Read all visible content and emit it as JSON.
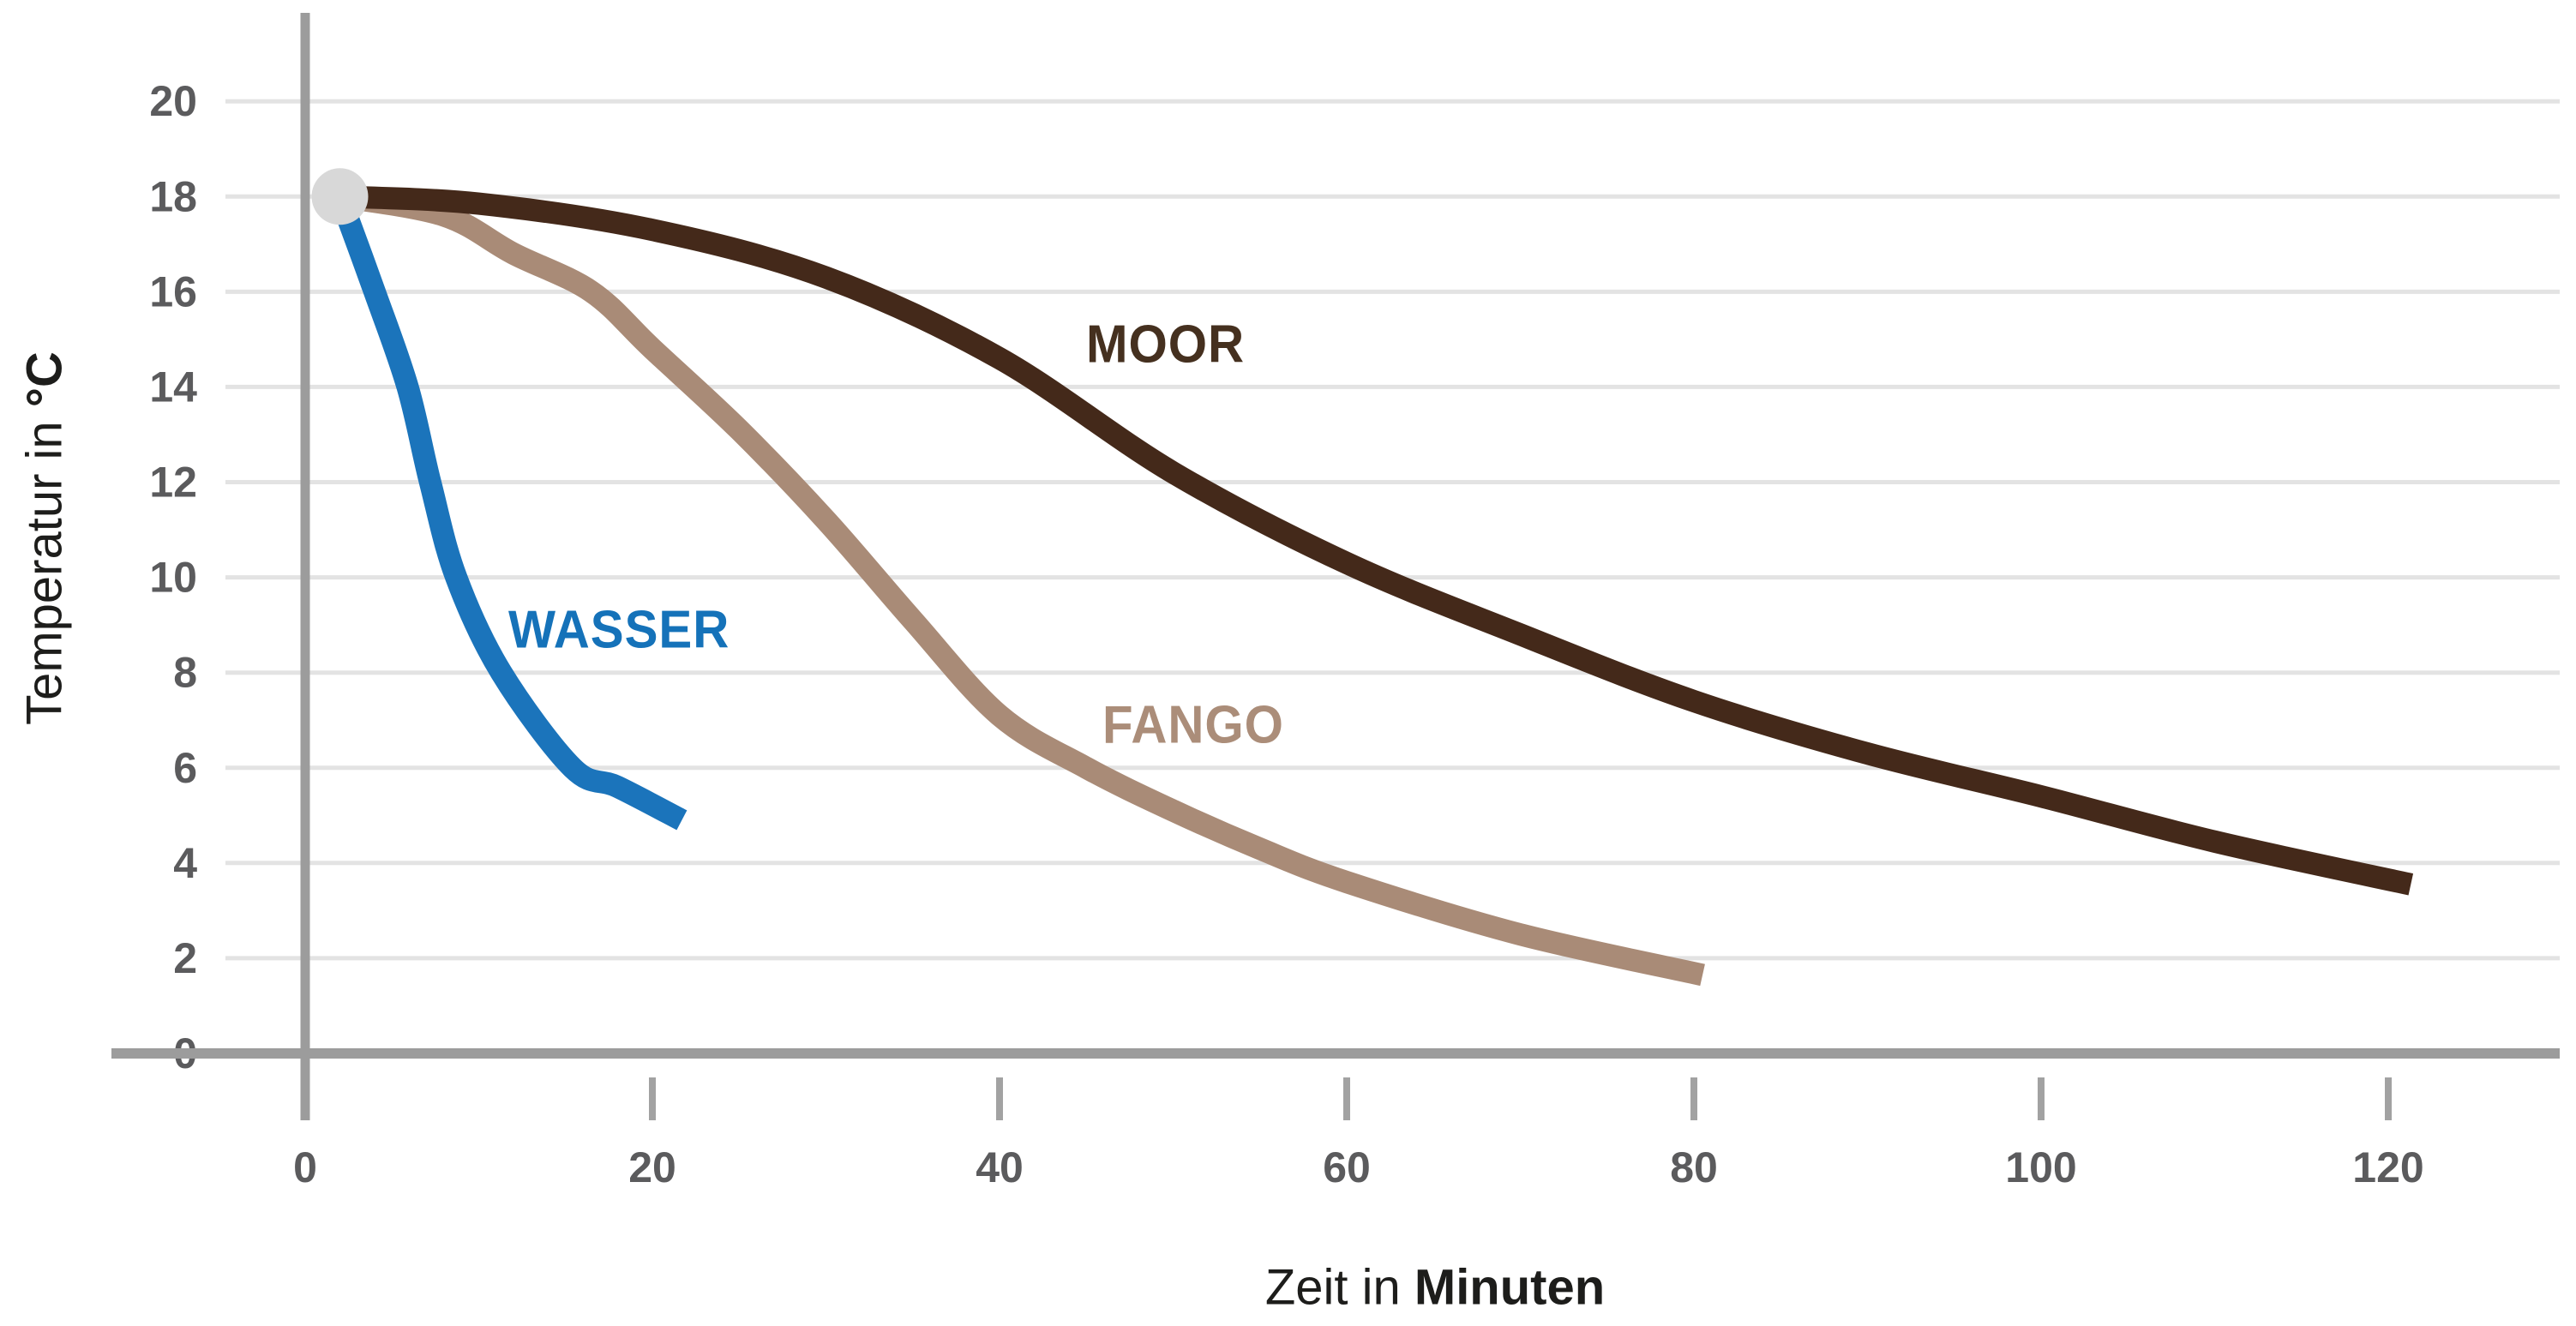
{
  "figure": {
    "background": "#ffffff",
    "x_axis": {
      "title_regular": "Zeit in ",
      "title_bold": "Minuten"
    },
    "y_axis": {
      "title_regular": "Temperatur in ",
      "title_bold": "°C"
    },
    "colors": {
      "grid": "#e3e3e3",
      "axis": "#9c9c9c",
      "tick": "#a2a2a2",
      "tick_label": "#5b5b5d",
      "title_text": "#1d1d1b",
      "start_marker": "#d8d8d8"
    }
  },
  "chart_data": {
    "type": "line",
    "title": "",
    "xlabel": "Zeit in Minuten",
    "ylabel": "Temperatur in °C",
    "xlim": [
      0,
      127
    ],
    "ylim": [
      0,
      21
    ],
    "x_ticks": [
      0,
      20,
      40,
      60,
      80,
      100,
      120
    ],
    "y_ticks": [
      0,
      2,
      4,
      6,
      8,
      10,
      12,
      14,
      16,
      18,
      20
    ],
    "grid": "horizontal",
    "legend_position": "inline-labels",
    "start_marker": {
      "t": 2,
      "temp": 18,
      "radius": 33,
      "color": "#d8d8d8"
    },
    "series": [
      {
        "name": "WASSER",
        "color": "#1b74bb",
        "x": [
          2,
          4,
          5.9,
          7.2,
          8.7,
          11.3,
          15.4,
          18,
          21.7
        ],
        "y": [
          18,
          16,
          14,
          12,
          10,
          8,
          6,
          5.6,
          4.9
        ]
      },
      {
        "name": "FANGO",
        "color": "#a98b77",
        "x": [
          2,
          8,
          12,
          16.5,
          20,
          25,
          30,
          35,
          40,
          45,
          50,
          55,
          60,
          70,
          80.5
        ],
        "y": [
          18,
          17.6,
          16.8,
          16,
          14.8,
          13.1,
          11.2,
          9.1,
          7.1,
          6,
          5.1,
          4.3,
          3.6,
          2.5,
          1.65
        ]
      },
      {
        "name": "MOOR",
        "color": "#44291a",
        "x": [
          2,
          10,
          20,
          30,
          40,
          50,
          60,
          70,
          80,
          90,
          100,
          110,
          121.3
        ],
        "y": [
          18,
          17.85,
          17.3,
          16.3,
          14.6,
          12.2,
          10.3,
          8.8,
          7.4,
          6.3,
          5.4,
          4.45,
          3.55
        ]
      }
    ],
    "annotations": [
      {
        "text": "WASSER",
        "t": 11.7,
        "temp": 8.9,
        "color": "#1572b9"
      },
      {
        "text": "FANGO",
        "t": 45.9,
        "temp": 6.9,
        "color": "#ab8d79"
      },
      {
        "text": "MOOR",
        "t": 45.0,
        "temp": 14.9,
        "color": "#45301f"
      }
    ]
  }
}
